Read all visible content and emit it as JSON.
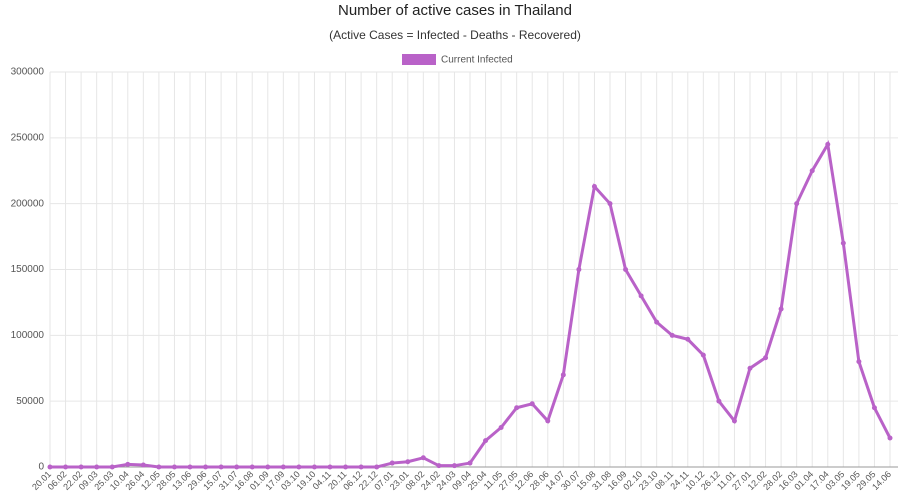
{
  "chart_data": {
    "type": "line",
    "title": "Number of active cases in Thailand",
    "subtitle": "(Active Cases = Infected - Deaths - Recovered)",
    "categories": [
      "20.01",
      "06.02",
      "22.02",
      "09.03",
      "25.03",
      "10.04",
      "26.04",
      "12.05",
      "28.05",
      "13.06",
      "29.06",
      "15.07",
      "31.07",
      "16.08",
      "01.09",
      "17.09",
      "03.10",
      "19.10",
      "04.11",
      "20.11",
      "06.12",
      "22.12",
      "07.01",
      "23.01",
      "08.02",
      "24.02",
      "24.03",
      "09.04",
      "25.04",
      "11.05",
      "27.05",
      "12.06",
      "28.06",
      "14.07",
      "30.07",
      "15.08",
      "31.08",
      "16.09",
      "02.10",
      "23.10",
      "08.11",
      "24.11",
      "10.12",
      "26.12",
      "11.01",
      "27.01",
      "12.02",
      "28.02",
      "16.03",
      "01.04",
      "17.04",
      "03.05",
      "19.05",
      "29.05",
      "14.06"
    ],
    "series": [
      {
        "name": "Current Infected",
        "color": "#b962c8",
        "values": [
          0,
          0,
          0,
          0,
          0,
          2000,
          1500,
          0,
          0,
          0,
          0,
          0,
          0,
          0,
          0,
          0,
          0,
          0,
          0,
          0,
          0,
          0,
          3000,
          4000,
          7000,
          1000,
          1000,
          3000,
          20000,
          30000,
          45000,
          48000,
          35000,
          70000,
          150000,
          213000,
          200000,
          150000,
          130000,
          110000,
          100000,
          97000,
          85000,
          50000,
          35000,
          75000,
          83000,
          120000,
          200000,
          225000,
          245000,
          170000,
          80000,
          45000,
          22000
        ]
      }
    ],
    "ylim": [
      0,
      300000
    ],
    "yticks": [
      0,
      50000,
      100000,
      150000,
      200000,
      250000,
      300000
    ],
    "grid": true,
    "legend": "top"
  }
}
